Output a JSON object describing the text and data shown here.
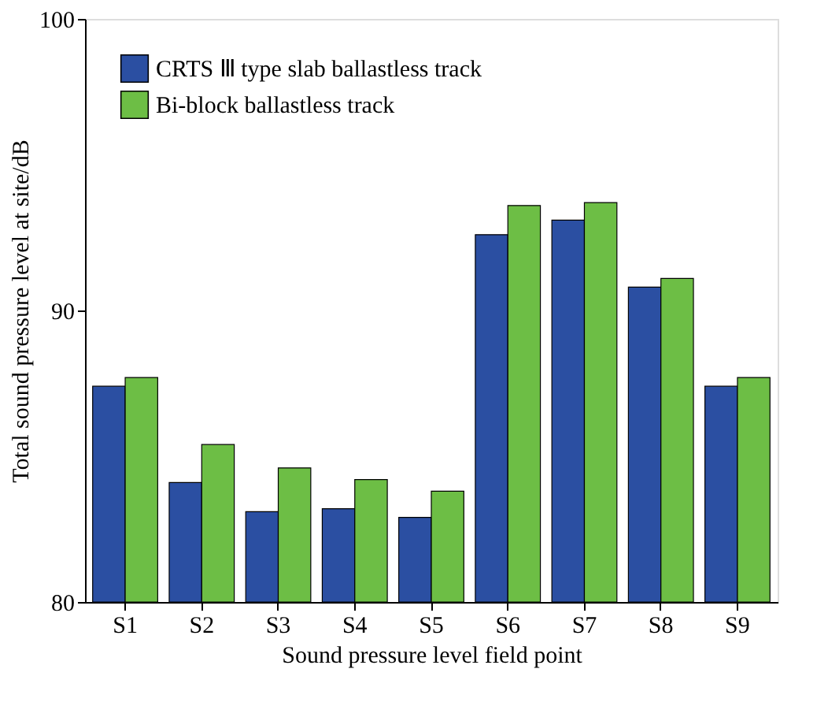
{
  "chart_data": {
    "type": "bar",
    "xlabel": "Sound pressure level field point",
    "ylabel": "Total sound pressure level at site/dB",
    "categories": [
      "S1",
      "S2",
      "S3",
      "S4",
      "S5",
      "S6",
      "S7",
      "S8",
      "S9"
    ],
    "series": [
      {
        "name": "CRTS Ⅲ type slab ballastless track",
        "color": "#2b4fa2",
        "values": [
          87.4,
          84.1,
          83.1,
          83.2,
          82.9,
          92.6,
          93.1,
          90.8,
          87.4
        ]
      },
      {
        "name": "Bi-block ballastless track",
        "color": "#6dbe45",
        "values": [
          87.7,
          85.4,
          84.6,
          84.2,
          83.8,
          93.6,
          93.7,
          91.1,
          87.7
        ]
      }
    ],
    "ylim": [
      80,
      100
    ],
    "yticks": [
      80,
      90,
      100
    ],
    "legend": "top left",
    "grid": false
  }
}
